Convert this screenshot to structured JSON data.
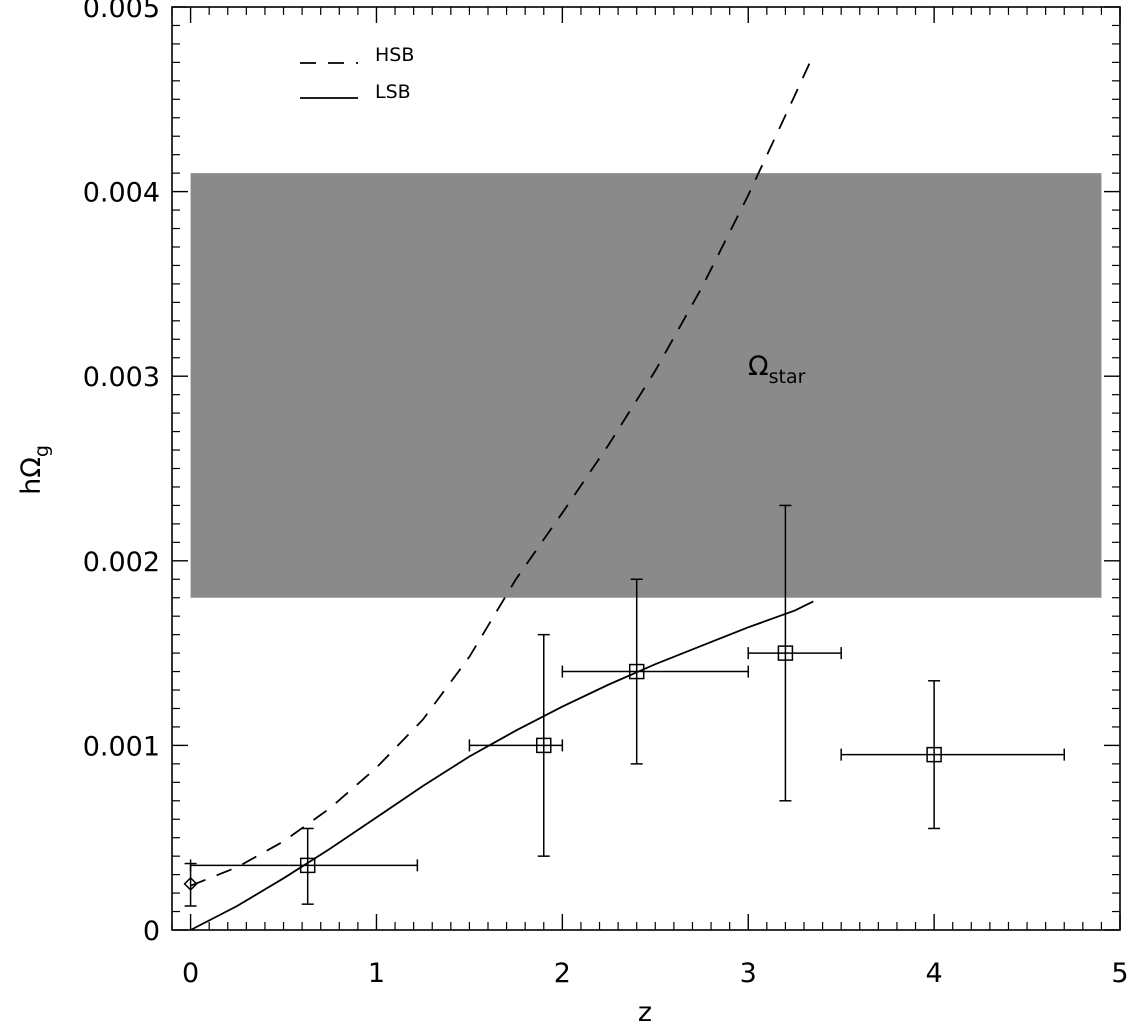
{
  "chart_data": {
    "type": "scatter",
    "xlabel": "z",
    "ylabel_main": "hΩ",
    "ylabel_sub": "g",
    "xlim": [
      -0.1,
      5
    ],
    "ylim": [
      0,
      0.005
    ],
    "xticks": [
      0,
      1,
      2,
      3,
      4,
      5
    ],
    "xtick_labels": [
      "0",
      "1",
      "2",
      "3",
      "4",
      "5"
    ],
    "yticks": [
      0,
      0.001,
      0.002,
      0.003,
      0.004,
      0.005
    ],
    "ytick_labels": [
      "0",
      "0.001",
      "0.002",
      "0.003",
      "0.004",
      "0.005"
    ],
    "grid": false,
    "legend": {
      "placement": "top-left",
      "entries": [
        {
          "label": "HSB",
          "style": "dashed"
        },
        {
          "label": "LSB",
          "style": "solid"
        }
      ]
    },
    "shaded_region": {
      "label_main": "Ω",
      "label_sub": "star",
      "x": [
        0,
        4.9
      ],
      "y": [
        0.0018,
        0.0041
      ],
      "color": "#8a8a8a"
    },
    "series": [
      {
        "name": "HSB",
        "style": "dashed",
        "x": [
          0,
          0.25,
          0.5,
          0.75,
          1.0,
          1.25,
          1.5,
          1.75,
          2.0,
          2.25,
          2.5,
          2.75,
          3.0,
          3.25,
          3.35
        ],
        "y": [
          0.00024,
          0.00034,
          0.00048,
          0.00066,
          0.00088,
          0.00114,
          0.00148,
          0.0019,
          0.00226,
          0.00263,
          0.00303,
          0.00348,
          0.00398,
          0.00452,
          0.00474
        ]
      },
      {
        "name": "LSB",
        "style": "solid",
        "x": [
          0,
          0.25,
          0.5,
          0.75,
          1.0,
          1.25,
          1.5,
          1.75,
          2.0,
          2.25,
          2.5,
          2.75,
          3.0,
          3.25,
          3.35
        ],
        "y": [
          0.0,
          0.00013,
          0.00028,
          0.00044,
          0.00061,
          0.00078,
          0.00094,
          0.00108,
          0.00121,
          0.00133,
          0.00144,
          0.00154,
          0.00164,
          0.00173,
          0.00178
        ]
      }
    ],
    "points": [
      {
        "marker": "diamond",
        "x": 0,
        "y": 0.00025,
        "xerr": [
          0,
          0
        ],
        "yerr": [
          0.00013,
          0.00036
        ]
      },
      {
        "marker": "square",
        "x": 0.63,
        "y": 0.00035,
        "xerr": [
          0,
          1.22
        ],
        "yerr": [
          0.00014,
          0.00055
        ]
      },
      {
        "marker": "square",
        "x": 1.9,
        "y": 0.001,
        "xerr": [
          1.5,
          2.0
        ],
        "yerr": [
          0.0004,
          0.0016
        ]
      },
      {
        "marker": "square",
        "x": 2.4,
        "y": 0.0014,
        "xerr": [
          2.0,
          3.0
        ],
        "yerr": [
          0.0009,
          0.0019
        ]
      },
      {
        "marker": "square",
        "x": 3.2,
        "y": 0.0015,
        "xerr": [
          3.0,
          3.5
        ],
        "yerr": [
          0.0007,
          0.0023
        ]
      },
      {
        "marker": "square",
        "x": 4.0,
        "y": 0.00095,
        "xerr": [
          3.5,
          4.7
        ],
        "yerr": [
          0.00055,
          0.00135
        ]
      }
    ]
  }
}
